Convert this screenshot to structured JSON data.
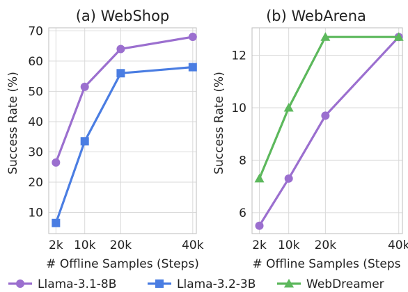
{
  "chart_data": [
    {
      "type": "line",
      "title": "(a) WebShop",
      "xlabel": "# Offline Samples (Steps)",
      "ylabel": "Success Rate (%)",
      "x": [
        2,
        10,
        20,
        40
      ],
      "x_tick_labels": [
        "2k",
        "10k",
        "20k",
        "40k"
      ],
      "ylim": [
        3,
        71
      ],
      "y_ticks": [
        10,
        20,
        30,
        40,
        50,
        60,
        70
      ],
      "grid": true,
      "series": [
        {
          "name": "Llama-3.1-8B",
          "color": "#9b6fcf",
          "marker": "circle",
          "values": [
            26.5,
            51.5,
            64,
            68
          ]
        },
        {
          "name": "Llama-3.2-3B",
          "color": "#4a7de2",
          "marker": "square",
          "values": [
            6.5,
            33.5,
            56,
            58
          ]
        }
      ]
    },
    {
      "type": "line",
      "title": "(b) WebArena",
      "xlabel": "# Offline Samples (Steps",
      "ylabel": "Success Rate (%)",
      "x": [
        2,
        10,
        20,
        40
      ],
      "x_tick_labels": [
        "2k",
        "10k",
        "20k",
        "40k"
      ],
      "ylim": [
        5.2,
        13.05
      ],
      "y_ticks": [
        6,
        8,
        10,
        12
      ],
      "grid": true,
      "series": [
        {
          "name": "Llama-3.1-8B",
          "color": "#9b6fcf",
          "marker": "circle",
          "values": [
            5.5,
            7.3,
            9.7,
            12.7
          ]
        },
        {
          "name": "WebDreamer",
          "color": "#5cb85c",
          "marker": "triangle",
          "values": [
            7.3,
            10,
            12.7,
            12.7
          ]
        }
      ]
    }
  ],
  "legend": {
    "placement": "bottom",
    "items": [
      {
        "name": "Llama-3.1-8B",
        "color": "#9b6fcf",
        "marker": "circle"
      },
      {
        "name": "Llama-3.2-3B",
        "color": "#4a7de2",
        "marker": "square"
      },
      {
        "name": "WebDreamer",
        "color": "#5cb85c",
        "marker": "triangle"
      }
    ]
  }
}
